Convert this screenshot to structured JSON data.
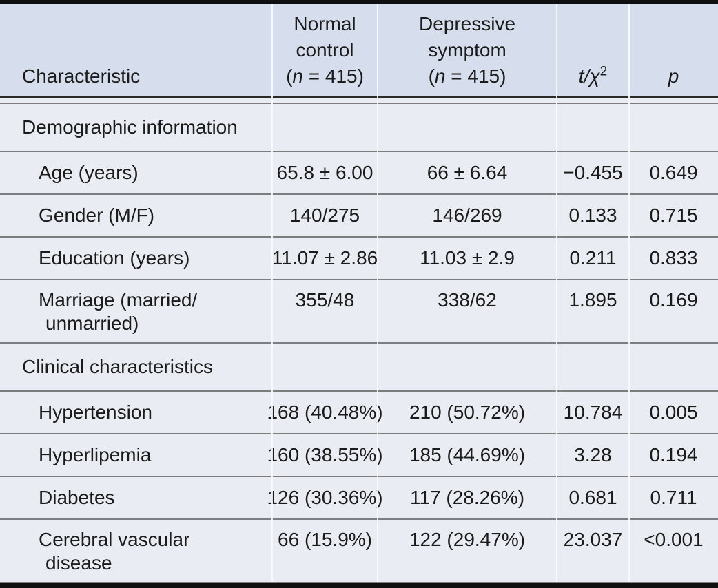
{
  "table": {
    "title_hint": "Comparison of characteristics between normal control and depressive symptom groups",
    "colors": {
      "header_bg": "#d6deed",
      "body_bg": "#e9ecf2",
      "rule_gray": "#7d7d7d",
      "rule_dark": "#2a2a2a",
      "border_black": "#101010",
      "text": "#1b1b1b",
      "column_divider": "#fafbfd"
    },
    "header": {
      "characteristic": "Characteristic",
      "group1": {
        "line1": "Normal",
        "line2": "control",
        "n_open": "(",
        "n": "n",
        "n_rest": " = 415)"
      },
      "group2": {
        "line1": "Depressive",
        "line2": "symptom",
        "n_open": "(",
        "n": "n",
        "n_rest": " = 415)"
      },
      "stat": {
        "base": "t/χ",
        "sup": "2"
      },
      "p": "p"
    },
    "rows": [
      {
        "type": "section",
        "label": "Demographic information"
      },
      {
        "type": "data",
        "label": "Age (years)",
        "normal": "65.8 ± 6.00",
        "depressive": "66 ± 6.64",
        "stat": "−0.455",
        "p": "0.649"
      },
      {
        "type": "data",
        "label": "Gender (M/F)",
        "normal": "140/275",
        "depressive": "146/269",
        "stat": "0.133",
        "p": "0.715"
      },
      {
        "type": "data",
        "label": "Education (years)",
        "normal": "11.07 ± 2.86",
        "depressive": "11.03 ± 2.9",
        "stat": "0.211",
        "p": "0.833"
      },
      {
        "type": "data",
        "label": "Marriage (married/",
        "label2": "unmarried)",
        "normal": "355/48",
        "depressive": "338/62",
        "stat": "1.895",
        "p": "0.169"
      },
      {
        "type": "section",
        "label": "Clinical characteristics"
      },
      {
        "type": "data",
        "label": "Hypertension",
        "normal": "168 (40.48%)",
        "depressive": "210 (50.72%)",
        "stat": "10.784",
        "p": "0.005"
      },
      {
        "type": "data",
        "label": "Hyperlipemia",
        "normal": "160 (38.55%)",
        "depressive": "185 (44.69%)",
        "stat": "3.28",
        "p": "0.194"
      },
      {
        "type": "data",
        "label": "Diabetes",
        "normal": "126 (30.36%)",
        "depressive": "117 (28.26%)",
        "stat": "0.681",
        "p": "0.711"
      },
      {
        "type": "data",
        "label": "Cerebral vascular",
        "label2": "disease",
        "normal": "66 (15.9%)",
        "depressive": "122 (29.47%)",
        "stat": "23.037",
        "p": "<0.001"
      }
    ]
  }
}
